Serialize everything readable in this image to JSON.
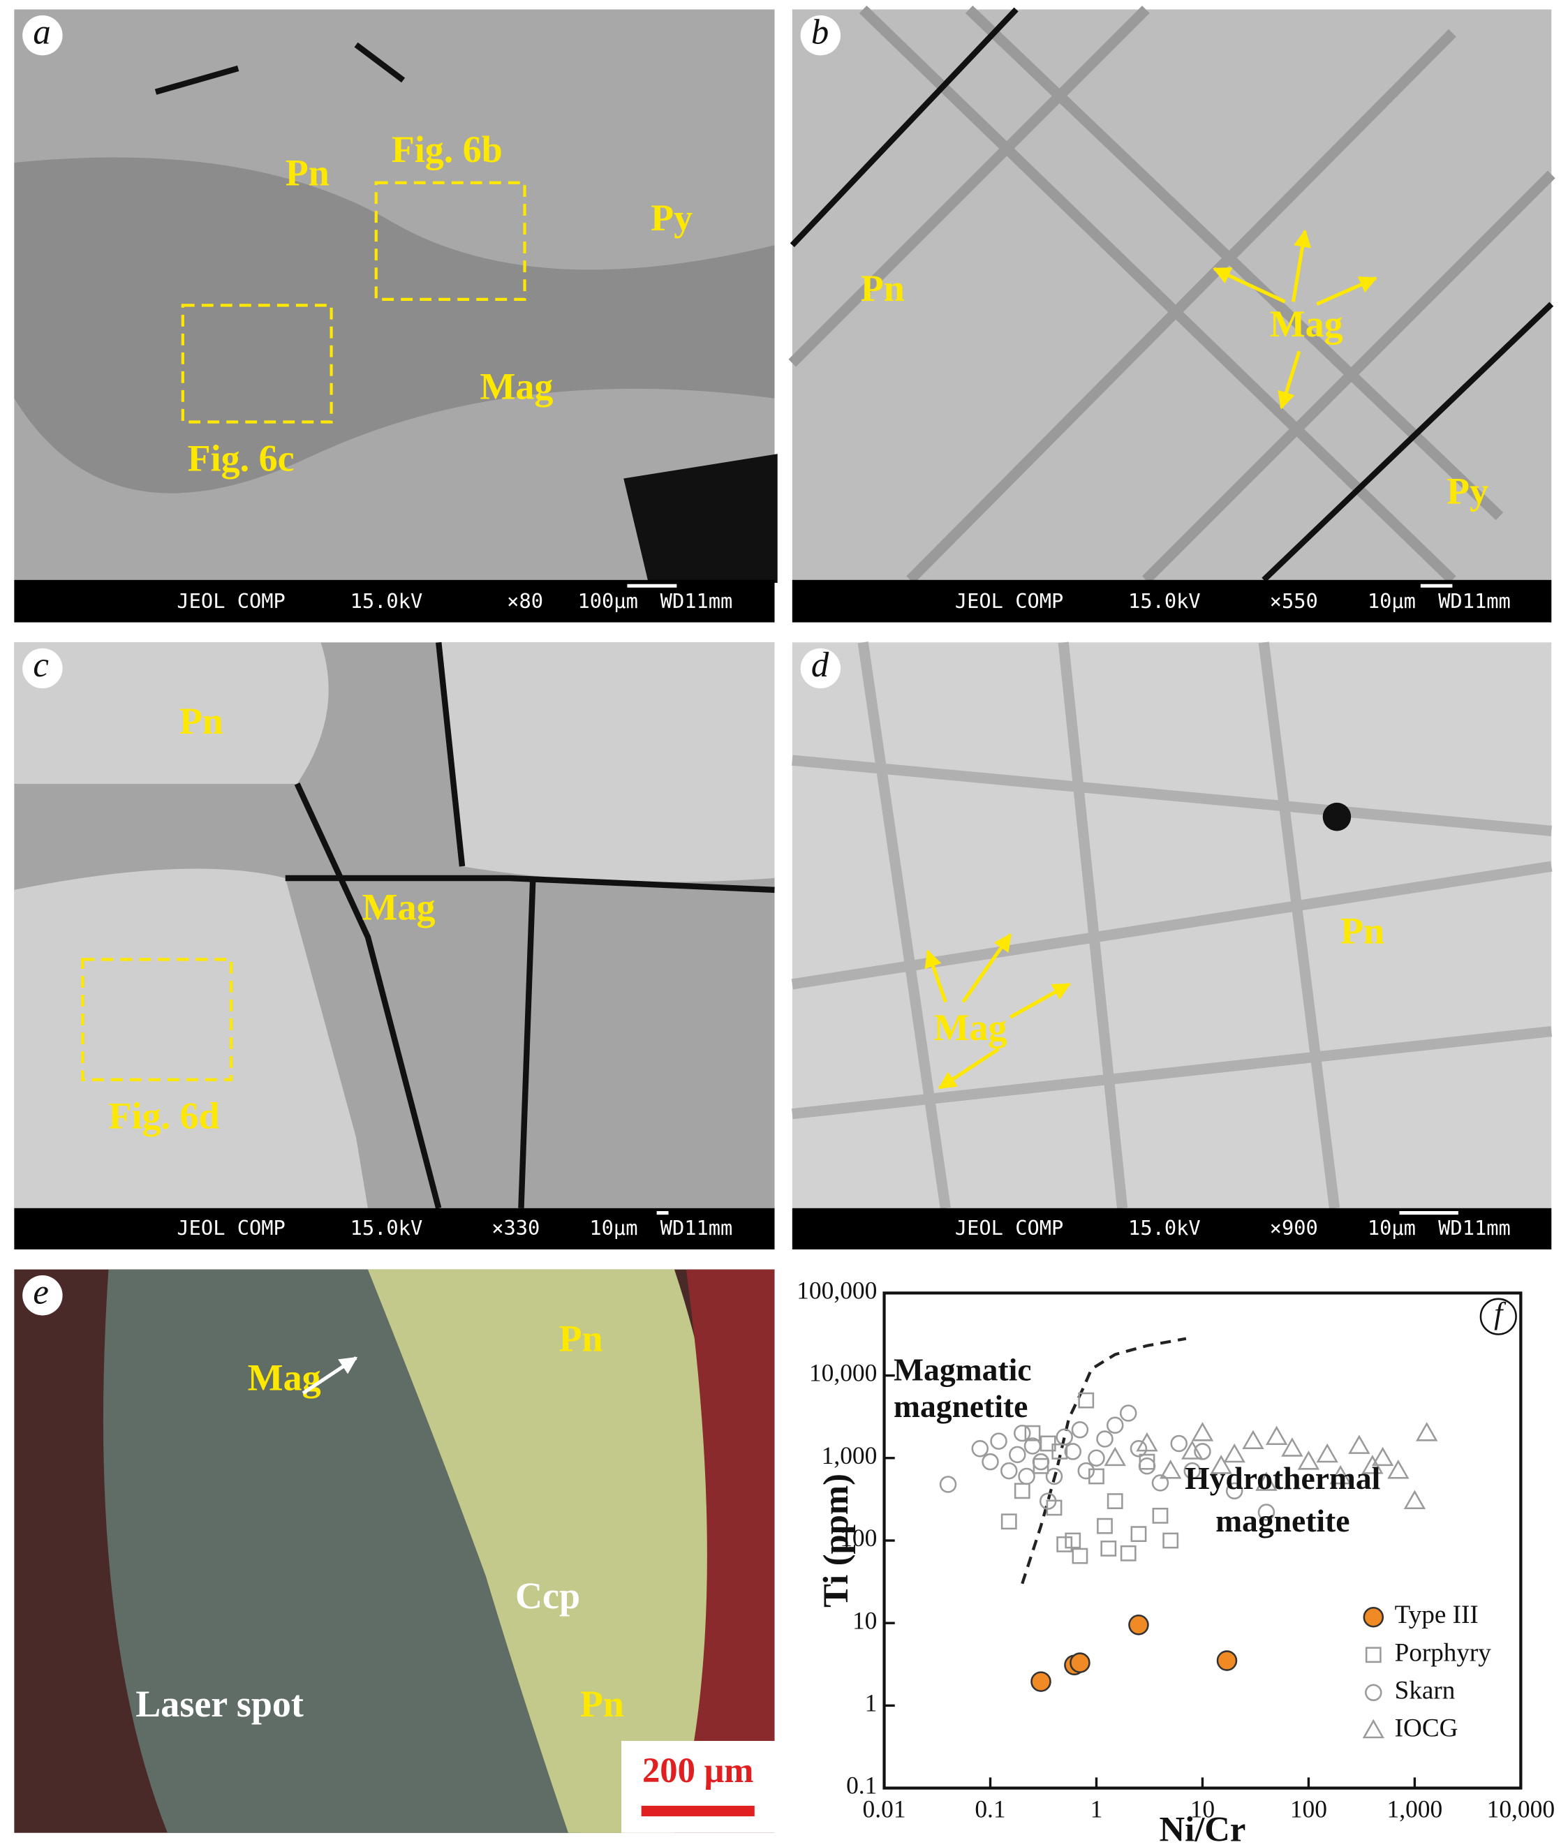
{
  "panels": [
    {
      "label": "a",
      "info": "JEOL COMP",
      "kv": "15.0kV",
      "mag": "×80",
      "scale": "100μm",
      "wd": "WD11mm",
      "annotations": [
        "Pn",
        "Fig. 6b",
        "Py",
        "Fig. 6c",
        "Mag"
      ]
    },
    {
      "label": "b",
      "info": "JEOL COMP",
      "kv": "15.0kV",
      "mag": "×550",
      "scale": "10μm",
      "wd": "WD11mm",
      "annotations": [
        "Pn",
        "Mag",
        "Py"
      ]
    },
    {
      "label": "c",
      "info": "JEOL COMP",
      "kv": "15.0kV",
      "mag": "×330",
      "scale": "10μm",
      "wd": "WD11mm",
      "annotations": [
        "Pn",
        "Mag",
        "Fig. 6d"
      ]
    },
    {
      "label": "d",
      "info": "JEOL COMP",
      "kv": "15.0kV",
      "mag": "×900",
      "scale": "10μm",
      "wd": "WD11mm",
      "annotations": [
        "Mag",
        "Pn"
      ]
    },
    {
      "label": "e",
      "scale": "200 μm",
      "annotations": [
        "Pn",
        "Mag",
        "Ccp",
        "Laser spot",
        "Pn"
      ]
    }
  ],
  "chart_data": {
    "type": "scatter",
    "panel_label": "f",
    "x_label": "Ni/Cr",
    "y_label": "Ti (ppm)",
    "log_x": true,
    "log_y": true,
    "xlim": [
      0.01,
      10000
    ],
    "ylim": [
      0.1,
      100000
    ],
    "xticks": [
      0.01,
      0.1,
      1,
      10,
      100,
      {
        "value": 1000,
        "label": "1,000"
      },
      {
        "value": 10000,
        "label": "10,000"
      }
    ],
    "yticks": [
      0.1,
      1,
      10,
      100,
      {
        "value": 1000,
        "label": "1,000"
      },
      {
        "value": 10000,
        "label": "10,000"
      },
      {
        "value": 100000,
        "label": "100,000"
      }
    ],
    "annotations": [
      [
        "Magmatic",
        "magnetite"
      ],
      [
        "Hydrothermal",
        "magnetite"
      ]
    ],
    "boundary": {
      "x": [
        0.2,
        0.3,
        0.42,
        0.55,
        0.75,
        0.9,
        1.5,
        3,
        7
      ],
      "y": [
        30,
        150,
        700,
        3000,
        7000,
        12000,
        18000,
        23000,
        28000
      ]
    },
    "legend": "lower right",
    "series": [
      {
        "name": "Type III",
        "marker": "circle",
        "color": "#f08a24",
        "filled": true,
        "x": [
          0.3,
          0.62,
          0.7,
          2.5,
          17
        ],
        "y": [
          1.95,
          3.1,
          3.3,
          9.5,
          3.5
        ]
      },
      {
        "name": "Porphyry",
        "marker": "square",
        "color": "#9a9a9a",
        "filled": false,
        "x": [
          0.15,
          0.2,
          0.3,
          0.35,
          0.4,
          0.5,
          0.6,
          0.8,
          1,
          1.2,
          1.5,
          2,
          2.5,
          3,
          4,
          5,
          0.45,
          0.7,
          1.3,
          0.25
        ],
        "y": [
          170,
          400,
          800,
          1500,
          250,
          90,
          100,
          5000,
          600,
          150,
          300,
          70,
          120,
          900,
          200,
          100,
          1200,
          65,
          80,
          2000
        ]
      },
      {
        "name": "Skarn",
        "marker": "circle",
        "color": "#9a9a9a",
        "filled": false,
        "x": [
          0.04,
          0.08,
          0.1,
          0.12,
          0.15,
          0.18,
          0.2,
          0.25,
          0.3,
          0.4,
          0.5,
          0.6,
          0.8,
          1,
          1.5,
          2,
          3,
          4,
          6,
          8,
          10,
          20,
          40,
          0.35,
          0.7,
          2.5,
          1.2,
          0.22
        ],
        "y": [
          480,
          1300,
          900,
          1600,
          700,
          1100,
          2000,
          1400,
          900,
          600,
          1800,
          1200,
          700,
          1000,
          2500,
          3500,
          800,
          500,
          1500,
          700,
          1200,
          400,
          220,
          300,
          2200,
          1300,
          1700,
          600
        ]
      },
      {
        "name": "IOCG",
        "marker": "triangle",
        "color": "#9a9a9a",
        "filled": false,
        "x": [
          1.5,
          3,
          5,
          8,
          10,
          15,
          20,
          30,
          40,
          50,
          70,
          100,
          150,
          200,
          300,
          400,
          500,
          700,
          1000,
          1300
        ],
        "y": [
          1000,
          1500,
          700,
          1200,
          2000,
          800,
          1100,
          1600,
          500,
          1800,
          1300,
          900,
          1100,
          600,
          1400,
          800,
          1000,
          700,
          300,
          2000
        ]
      }
    ]
  }
}
